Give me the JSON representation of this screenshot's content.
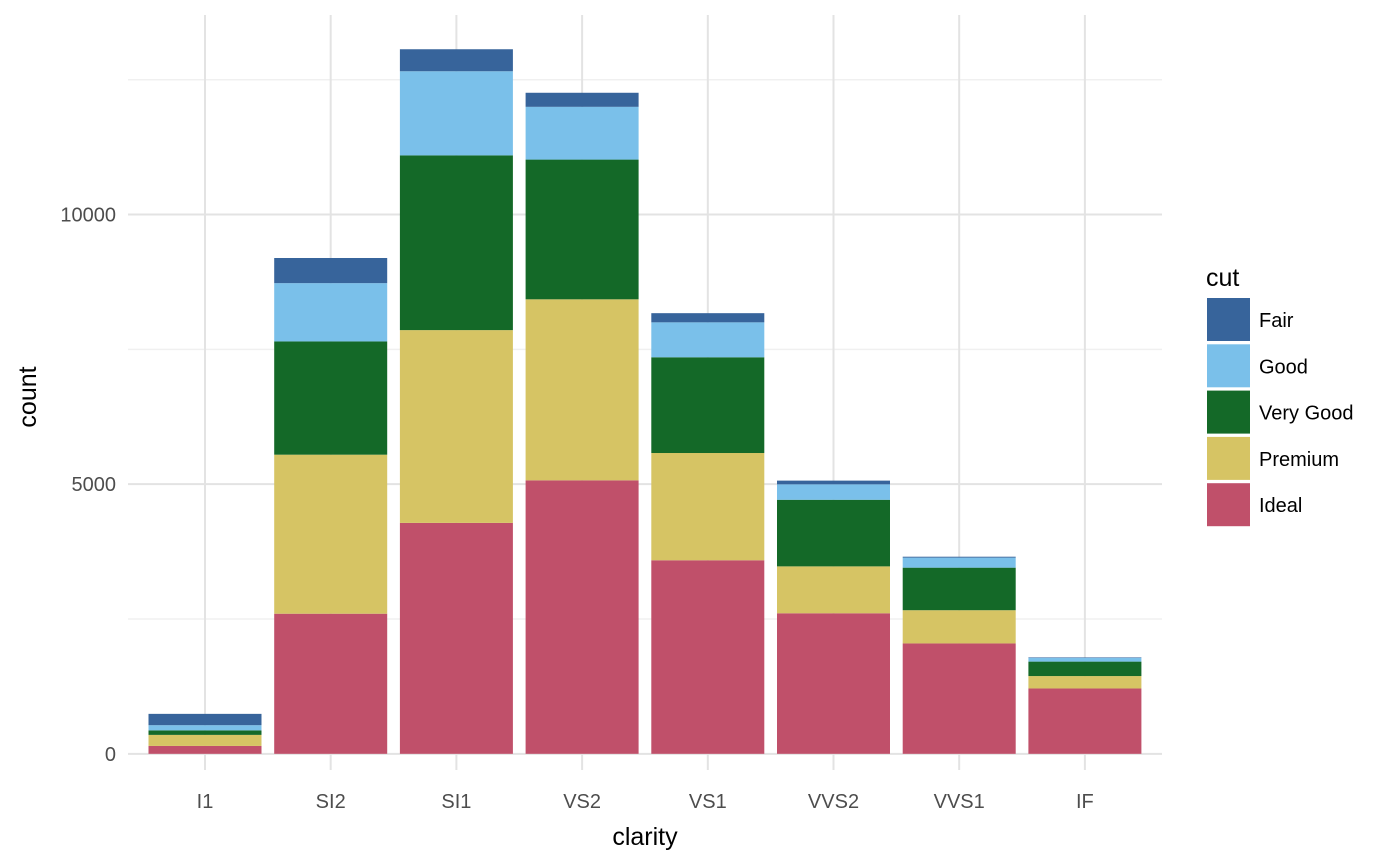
{
  "chart_data": {
    "type": "bar",
    "stacked": true,
    "xlabel": "clarity",
    "ylabel": "count",
    "ylim": [
      -300,
      13700
    ],
    "yticks": [
      0,
      5000,
      10000
    ],
    "ytick_labels": [
      "0",
      "5000",
      "10000"
    ],
    "grid": true,
    "categories": [
      "I1",
      "SI2",
      "SI1",
      "VS2",
      "VS1",
      "VVS2",
      "VVS1",
      "IF"
    ],
    "legend": {
      "title": "cut",
      "position": "right"
    },
    "series": [
      {
        "name": "Ideal",
        "color": "#c0506a",
        "values": [
          146,
          2598,
          4282,
          5071,
          3589,
          2606,
          2047,
          1212
        ]
      },
      {
        "name": "Premium",
        "color": "#d6c464",
        "values": [
          205,
          2949,
          3575,
          3357,
          1989,
          870,
          616,
          230
        ]
      },
      {
        "name": "Very Good",
        "color": "#146928",
        "values": [
          84,
          2100,
          3240,
          2591,
          1775,
          1235,
          789,
          268
        ]
      },
      {
        "name": "Good",
        "color": "#7ac0ea",
        "values": [
          96,
          1081,
          1560,
          978,
          648,
          286,
          186,
          71
        ]
      },
      {
        "name": "Fair",
        "color": "#37649b",
        "values": [
          210,
          466,
          408,
          261,
          170,
          69,
          17,
          9
        ]
      }
    ],
    "legend_order": [
      "Fair",
      "Good",
      "Very Good",
      "Premium",
      "Ideal"
    ]
  }
}
